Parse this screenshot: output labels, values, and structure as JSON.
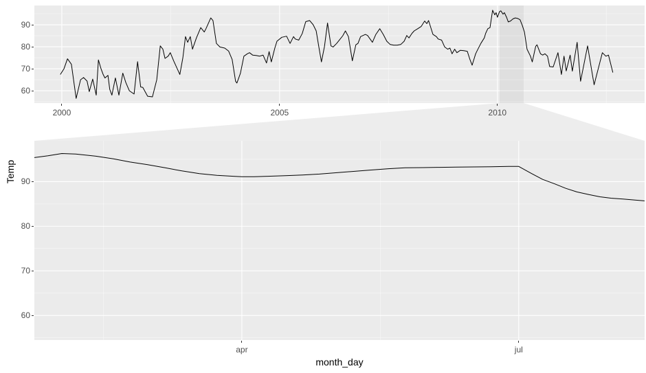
{
  "colors": {
    "panel_bg": "#EBEBEB",
    "grid_major": "#FFFFFF",
    "grid_minor": "#FFFFFF",
    "line": "#000000",
    "tick_text": "#4D4D4D",
    "axis_title_text": "#000000",
    "indicator_fill": "rgba(0,0,0,0.05)",
    "connector_fill": "rgba(0,0,0,0.07)"
  },
  "chart_data": [
    {
      "id": "overview",
      "type": "line",
      "title": "",
      "xlabel": "",
      "ylabel": "",
      "grid": true,
      "legend": "none",
      "xlim": [
        1999.37,
        2013.38
      ],
      "ylim": [
        54.4,
        98.75
      ],
      "x_ticks": [
        {
          "v": 2000,
          "label": "2000"
        },
        {
          "v": 2005,
          "label": "2005"
        },
        {
          "v": 2010,
          "label": "2010"
        }
      ],
      "x_minor": [
        2002.5,
        2007.5,
        2012.5
      ],
      "y_ticks": [
        {
          "v": 60,
          "label": "60"
        },
        {
          "v": 70,
          "label": "70"
        },
        {
          "v": 80,
          "label": "80"
        },
        {
          "v": 90,
          "label": "90"
        }
      ],
      "y_minor": [
        55,
        65,
        75,
        85,
        95
      ],
      "zoom_indicator": {
        "from": 2010.05,
        "to": 2010.6
      },
      "series": [
        {
          "name": "Temp",
          "points": [
            [
              1999.97,
              67.5
            ],
            [
              2000.05,
              70
            ],
            [
              2000.13,
              74.5
            ],
            [
              2000.22,
              72
            ],
            [
              2000.33,
              56.5
            ],
            [
              2000.43,
              65
            ],
            [
              2000.5,
              66
            ],
            [
              2000.58,
              64.4
            ],
            [
              2000.63,
              59.6
            ],
            [
              2000.71,
              65.3
            ],
            [
              2000.79,
              58
            ],
            [
              2000.84,
              74
            ],
            [
              2000.9,
              70
            ],
            [
              2000.95,
              67.4
            ],
            [
              2000.99,
              65.8
            ],
            [
              2001.06,
              67
            ],
            [
              2001.1,
              60.6
            ],
            [
              2001.15,
              58
            ],
            [
              2001.23,
              65.8
            ],
            [
              2001.31,
              58
            ],
            [
              2001.4,
              68
            ],
            [
              2001.47,
              63.7
            ],
            [
              2001.55,
              60
            ],
            [
              2001.66,
              58.5
            ],
            [
              2001.74,
              73.2
            ],
            [
              2001.81,
              61.7
            ],
            [
              2001.86,
              61.5
            ],
            [
              2001.97,
              57.5
            ],
            [
              2002.08,
              57.2
            ],
            [
              2002.18,
              65
            ],
            [
              2002.26,
              80.4
            ],
            [
              2002.32,
              78.9
            ],
            [
              2002.37,
              74.7
            ],
            [
              2002.44,
              75.7
            ],
            [
              2002.49,
              77.3
            ],
            [
              2002.57,
              73.5
            ],
            [
              2002.65,
              70
            ],
            [
              2002.71,
              67.4
            ],
            [
              2002.78,
              75
            ],
            [
              2002.84,
              84.6
            ],
            [
              2002.89,
              82
            ],
            [
              2002.95,
              84.6
            ],
            [
              2003.0,
              78.9
            ],
            [
              2003.09,
              84
            ],
            [
              2003.19,
              88.7
            ],
            [
              2003.27,
              86.7
            ],
            [
              2003.31,
              88.2
            ],
            [
              2003.42,
              93.1
            ],
            [
              2003.47,
              91.9
            ],
            [
              2003.55,
              81.5
            ],
            [
              2003.63,
              79.9
            ],
            [
              2003.74,
              79.4
            ],
            [
              2003.83,
              78
            ],
            [
              2003.91,
              74.2
            ],
            [
              2003.99,
              64.3
            ],
            [
              2004.02,
              63.5
            ],
            [
              2004.1,
              67.9
            ],
            [
              2004.18,
              75.7
            ],
            [
              2004.26,
              76.8
            ],
            [
              2004.31,
              77.3
            ],
            [
              2004.38,
              76.2
            ],
            [
              2004.46,
              76
            ],
            [
              2004.54,
              75.7
            ],
            [
              2004.62,
              76.2
            ],
            [
              2004.7,
              72.6
            ],
            [
              2004.76,
              77.8
            ],
            [
              2004.81,
              73.1
            ],
            [
              2004.89,
              79.4
            ],
            [
              2004.94,
              82.5
            ],
            [
              2005.05,
              84.3
            ],
            [
              2005.16,
              84.8
            ],
            [
              2005.24,
              81.5
            ],
            [
              2005.32,
              84.6
            ],
            [
              2005.36,
              83.5
            ],
            [
              2005.44,
              83
            ],
            [
              2005.52,
              86
            ],
            [
              2005.6,
              91.4
            ],
            [
              2005.69,
              91.9
            ],
            [
              2005.77,
              90
            ],
            [
              2005.84,
              87.2
            ],
            [
              2005.9,
              80
            ],
            [
              2005.96,
              73.1
            ],
            [
              2006.03,
              80
            ],
            [
              2006.1,
              90.8
            ],
            [
              2006.18,
              80.4
            ],
            [
              2006.23,
              79.9
            ],
            [
              2006.31,
              81.5
            ],
            [
              2006.39,
              83.5
            ],
            [
              2006.45,
              85
            ],
            [
              2006.51,
              87.2
            ],
            [
              2006.58,
              84.6
            ],
            [
              2006.67,
              73.6
            ],
            [
              2006.75,
              80.9
            ],
            [
              2006.8,
              81.5
            ],
            [
              2006.86,
              84.6
            ],
            [
              2006.97,
              85.6
            ],
            [
              2007.02,
              85.1
            ],
            [
              2007.13,
              82
            ],
            [
              2007.21,
              85.6
            ],
            [
              2007.3,
              88.2
            ],
            [
              2007.38,
              85.6
            ],
            [
              2007.46,
              82.5
            ],
            [
              2007.54,
              81
            ],
            [
              2007.62,
              80.7
            ],
            [
              2007.7,
              80.7
            ],
            [
              2007.78,
              81
            ],
            [
              2007.86,
              82.5
            ],
            [
              2007.92,
              85.1
            ],
            [
              2007.97,
              84
            ],
            [
              2008.04,
              86.1
            ],
            [
              2008.09,
              87.2
            ],
            [
              2008.17,
              88.2
            ],
            [
              2008.25,
              89.2
            ],
            [
              2008.33,
              91.7
            ],
            [
              2008.38,
              90.5
            ],
            [
              2008.42,
              91.9
            ],
            [
              2008.52,
              85.6
            ],
            [
              2008.6,
              84.6
            ],
            [
              2008.64,
              83.5
            ],
            [
              2008.72,
              83
            ],
            [
              2008.79,
              79.9
            ],
            [
              2008.86,
              78.9
            ],
            [
              2008.91,
              79.4
            ],
            [
              2008.96,
              76.8
            ],
            [
              2009.02,
              78.9
            ],
            [
              2009.07,
              77.3
            ],
            [
              2009.15,
              78.4
            ],
            [
              2009.23,
              78.2
            ],
            [
              2009.31,
              77.9
            ],
            [
              2009.37,
              74.2
            ],
            [
              2009.42,
              71.6
            ],
            [
              2009.5,
              76.8
            ],
            [
              2009.54,
              78.4
            ],
            [
              2009.62,
              81.5
            ],
            [
              2009.7,
              84
            ],
            [
              2009.73,
              86.1
            ],
            [
              2009.78,
              88.2
            ],
            [
              2009.83,
              88.7
            ],
            [
              2009.89,
              96.6
            ],
            [
              2009.94,
              94.5
            ],
            [
              2009.97,
              95.5
            ],
            [
              2010.0,
              93.4
            ],
            [
              2010.05,
              96
            ],
            [
              2010.08,
              96.3
            ],
            [
              2010.13,
              94.8
            ],
            [
              2010.16,
              95.5
            ],
            [
              2010.21,
              93.4
            ],
            [
              2010.25,
              91.3
            ],
            [
              2010.3,
              91.7
            ],
            [
              2010.36,
              92.7
            ],
            [
              2010.41,
              93.1
            ],
            [
              2010.46,
              92.9
            ],
            [
              2010.52,
              92.3
            ],
            [
              2010.57,
              89.8
            ],
            [
              2010.62,
              86.7
            ],
            [
              2010.68,
              78.9
            ],
            [
              2010.76,
              75.7
            ],
            [
              2010.8,
              73.1
            ],
            [
              2010.88,
              80.2
            ],
            [
              2010.91,
              80.9
            ],
            [
              2010.99,
              76.8
            ],
            [
              2011.04,
              76.2
            ],
            [
              2011.09,
              76.8
            ],
            [
              2011.15,
              75.7
            ],
            [
              2011.2,
              71
            ],
            [
              2011.28,
              70.8
            ],
            [
              2011.39,
              77.3
            ],
            [
              2011.47,
              67.4
            ],
            [
              2011.53,
              75.7
            ],
            [
              2011.58,
              69
            ],
            [
              2011.67,
              76.2
            ],
            [
              2011.72,
              68.9
            ],
            [
              2011.83,
              82
            ],
            [
              2011.91,
              64.3
            ],
            [
              2012.07,
              80.4
            ],
            [
              2012.22,
              62.7
            ],
            [
              2012.41,
              77.3
            ],
            [
              2012.49,
              75.7
            ],
            [
              2012.55,
              76.2
            ],
            [
              2012.65,
              68.4
            ]
          ]
        }
      ]
    },
    {
      "id": "zoom",
      "type": "line",
      "title": "",
      "xlabel": "month_day",
      "ylabel": "Temp",
      "grid": true,
      "legend": "none",
      "x_unit": "months_after_jan1",
      "xlim": [
        0.752,
        7.364
      ],
      "ylim": [
        54.5,
        99.15
      ],
      "x_ticks": [
        {
          "v": 3,
          "label": "apr"
        },
        {
          "v": 6,
          "label": "jul"
        }
      ],
      "x_minor": [
        1.5,
        4.5,
        7.5
      ],
      "y_ticks": [
        {
          "v": 60,
          "label": "60"
        },
        {
          "v": 70,
          "label": "70"
        },
        {
          "v": 80,
          "label": "80"
        },
        {
          "v": 90,
          "label": "90"
        }
      ],
      "y_minor": [
        55,
        65,
        75,
        85,
        95
      ],
      "series": [
        {
          "name": "Temp",
          "points": [
            [
              0.75,
              95.4
            ],
            [
              0.9,
              95.8
            ],
            [
              1.05,
              96.3
            ],
            [
              1.2,
              96.2
            ],
            [
              1.42,
              95.7
            ],
            [
              1.61,
              95.1
            ],
            [
              1.79,
              94.4
            ],
            [
              1.98,
              93.8
            ],
            [
              2.17,
              93.1
            ],
            [
              2.35,
              92.4
            ],
            [
              2.54,
              91.8
            ],
            [
              2.73,
              91.4
            ],
            [
              2.91,
              91.2
            ],
            [
              3.0,
              91.1
            ],
            [
              3.13,
              91.1
            ],
            [
              3.28,
              91.2
            ],
            [
              3.47,
              91.35
            ],
            [
              3.66,
              91.5
            ],
            [
              3.84,
              91.7
            ],
            [
              4.03,
              92.0
            ],
            [
              4.21,
              92.3
            ],
            [
              4.4,
              92.6
            ],
            [
              4.59,
              92.9
            ],
            [
              4.77,
              93.1
            ],
            [
              4.96,
              93.15
            ],
            [
              5.14,
              93.2
            ],
            [
              5.33,
              93.25
            ],
            [
              5.52,
              93.3
            ],
            [
              5.7,
              93.35
            ],
            [
              5.89,
              93.4
            ],
            [
              6.0,
              93.4
            ],
            [
              6.14,
              91.8
            ],
            [
              6.26,
              90.5
            ],
            [
              6.39,
              89.5
            ],
            [
              6.51,
              88.5
            ],
            [
              6.63,
              87.7
            ],
            [
              6.76,
              87.1
            ],
            [
              6.88,
              86.6
            ],
            [
              7.0,
              86.3
            ],
            [
              7.13,
              86.1
            ],
            [
              7.25,
              85.9
            ],
            [
              7.36,
              85.7
            ]
          ]
        }
      ]
    }
  ]
}
